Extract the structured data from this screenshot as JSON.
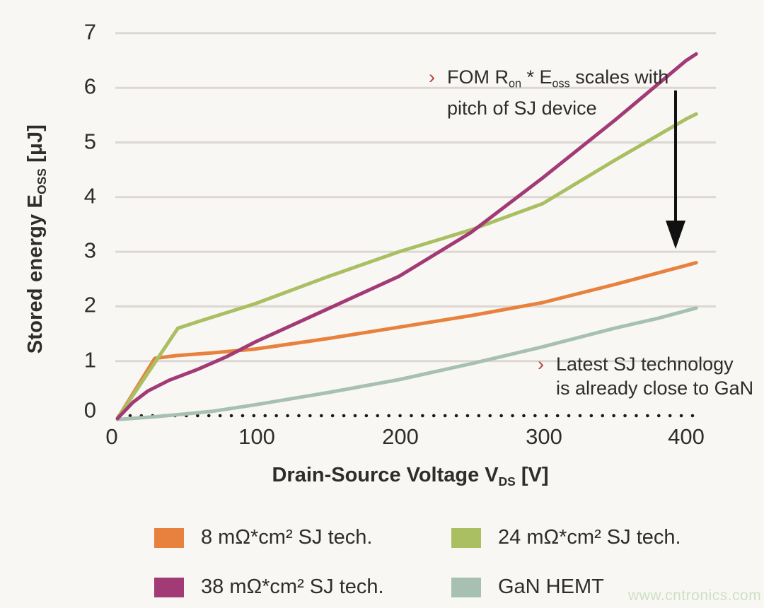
{
  "axes": {
    "y_title": {
      "pre": "Stored energy E",
      "sub": "OSS",
      "post": " [μJ]"
    },
    "x_title": {
      "pre": "Drain-Source Voltage V",
      "sub": "DS",
      "post": " [V]"
    },
    "y_ticks": [
      "7",
      "6",
      "5",
      "4",
      "3",
      "2",
      "1",
      "0"
    ],
    "x_ticks": [
      "0",
      "100",
      "200",
      "300",
      "400"
    ]
  },
  "annotations": {
    "fom": {
      "bullet": "›",
      "line1_pre": "FOM R",
      "line1_sub1": "on",
      "line1_mid": " * E",
      "line1_sub2": "oss",
      "line1_post": " scales with",
      "line2": "pitch of SJ device"
    },
    "gan": {
      "bullet": "›",
      "line1": "Latest SJ technology",
      "line2": "is already close to GaN"
    }
  },
  "legend": {
    "items": [
      {
        "label": "8 mΩ*cm² SJ tech.",
        "color": "#e8813e"
      },
      {
        "label": "24 mΩ*cm² SJ tech.",
        "color": "#a9bf62"
      },
      {
        "label": "38 mΩ*cm² SJ tech.",
        "color": "#a23a76"
      },
      {
        "label": "GaN HEMT",
        "color": "#a7c0b1"
      }
    ]
  },
  "watermark": "www.cntronics.com",
  "chart_data": {
    "type": "line",
    "title": "",
    "xlabel": "Drain-Source Voltage V_DS [V]",
    "ylabel": "Stored energy E_OSS [μJ]",
    "xlim": [
      0,
      410
    ],
    "ylim": [
      0,
      7
    ],
    "x_ticks": [
      0,
      100,
      200,
      300,
      400
    ],
    "y_ticks": [
      0,
      1,
      2,
      3,
      4,
      5,
      6,
      7
    ],
    "grid": "horizontal-light, dotted zero baseline",
    "legend_position": "below",
    "colors": {
      "grid": "#ddd7d3",
      "zero_line": "#1a1a1a",
      "annotation_bullet": "#b5423a",
      "arrow": "#111111"
    },
    "series": [
      {
        "name": "GaN HEMT",
        "color": "#a7c0b1",
        "points": [
          [
            4,
            -0.07
          ],
          [
            30,
            -0.02
          ],
          [
            50,
            0.03
          ],
          [
            70,
            0.08
          ],
          [
            100,
            0.2
          ],
          [
            150,
            0.42
          ],
          [
            200,
            0.66
          ],
          [
            250,
            0.95
          ],
          [
            300,
            1.26
          ],
          [
            350,
            1.6
          ],
          [
            380,
            1.78
          ],
          [
            407,
            1.97
          ]
        ]
      },
      {
        "name": "8 mΩ*cm² SJ tech.",
        "color": "#e8813e",
        "points": [
          [
            4,
            -0.05
          ],
          [
            30,
            1.05
          ],
          [
            45,
            1.1
          ],
          [
            70,
            1.15
          ],
          [
            100,
            1.22
          ],
          [
            150,
            1.41
          ],
          [
            200,
            1.62
          ],
          [
            250,
            1.83
          ],
          [
            300,
            2.07
          ],
          [
            350,
            2.4
          ],
          [
            400,
            2.75
          ],
          [
            407,
            2.8
          ]
        ]
      },
      {
        "name": "24 mΩ*cm² SJ tech.",
        "color": "#a9bf62",
        "points": [
          [
            4,
            -0.05
          ],
          [
            46,
            1.6
          ],
          [
            60,
            1.72
          ],
          [
            100,
            2.05
          ],
          [
            150,
            2.54
          ],
          [
            200,
            3.0
          ],
          [
            250,
            3.4
          ],
          [
            300,
            3.88
          ],
          [
            350,
            4.67
          ],
          [
            400,
            5.43
          ],
          [
            407,
            5.52
          ]
        ]
      },
      {
        "name": "38 mΩ*cm² SJ tech.",
        "color": "#a23a76",
        "points": [
          [
            4,
            -0.05
          ],
          [
            15,
            0.25
          ],
          [
            25,
            0.45
          ],
          [
            40,
            0.65
          ],
          [
            60,
            0.85
          ],
          [
            80,
            1.08
          ],
          [
            100,
            1.35
          ],
          [
            150,
            1.95
          ],
          [
            200,
            2.55
          ],
          [
            250,
            3.35
          ],
          [
            300,
            4.35
          ],
          [
            350,
            5.4
          ],
          [
            400,
            6.5
          ],
          [
            407,
            6.62
          ]
        ]
      }
    ],
    "annotations": [
      {
        "text": "FOM Ron * Eoss scales with pitch of SJ device",
        "x": 225,
        "y": 6.4,
        "note": "black down-arrow from ~(392V,6.0) to ~(392V,3.1)"
      },
      {
        "text": "Latest SJ technology is already close to GaN",
        "x": 300,
        "y": 0.9
      }
    ]
  }
}
